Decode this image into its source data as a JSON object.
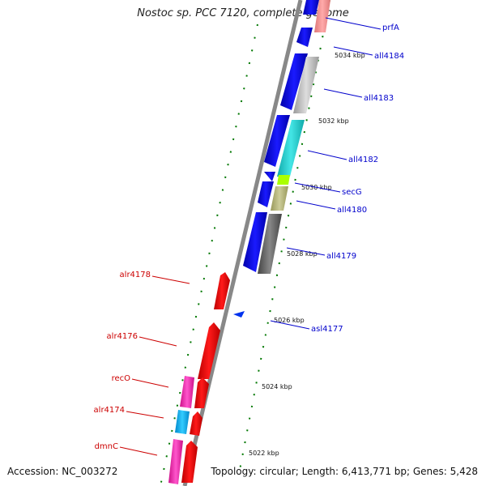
{
  "title": "Nostoc sp. PCC 7120, complete genome",
  "footer": {
    "accession": "Accession: NC_003272",
    "topology": "Topology: circular; Length: 6,413,771 bp; Genes: 5,428"
  },
  "colors": {
    "background": "#ffffff",
    "backbone": "#888888",
    "tick": "#007700",
    "forward_label": "#cc0000",
    "reverse_label": "#0000cc"
  },
  "scale_labels": [
    "5034 kbp",
    "5032 kbp",
    "5030 kbp",
    "5028 kbp",
    "5026 kbp",
    "5024 kbp",
    "5022 kbp"
  ],
  "reverse_gene_labels": [
    "prfA",
    "all4184",
    "all4183",
    "all4182",
    "secG",
    "all4180",
    "all4179",
    "asl4177"
  ],
  "forward_gene_labels": [
    "alr4178",
    "alr4176",
    "recO",
    "alr4174",
    "dmnC"
  ]
}
